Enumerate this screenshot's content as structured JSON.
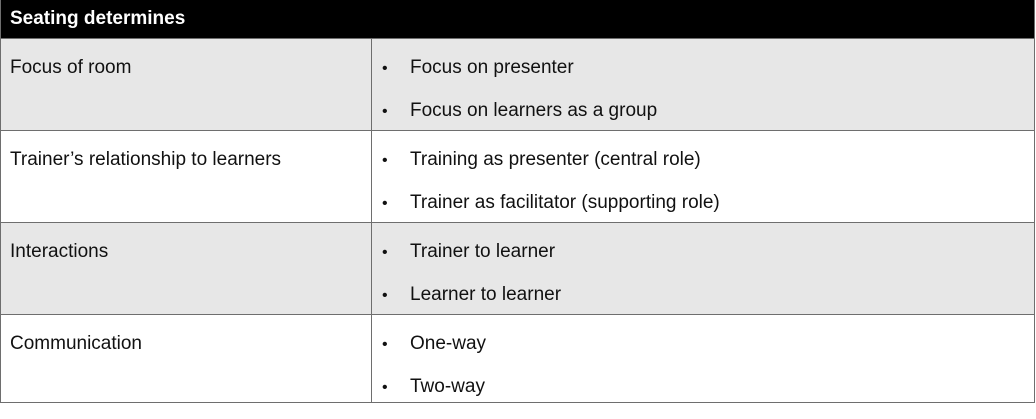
{
  "table": {
    "header": "Seating determines",
    "rows": [
      {
        "label": "Focus of room",
        "items": [
          "Focus on presenter",
          "Focus on learners as a group"
        ]
      },
      {
        "label": "Trainer’s relationship to learners",
        "items": [
          "Training as presenter (central role)",
          "Trainer as facilitator (supporting role)"
        ]
      },
      {
        "label": "Interactions",
        "items": [
          "Trainer to learner",
          "Learner to learner"
        ]
      },
      {
        "label": "Communication",
        "items": [
          "One-way",
          "Two-way"
        ]
      }
    ],
    "bullet_char": "•"
  }
}
